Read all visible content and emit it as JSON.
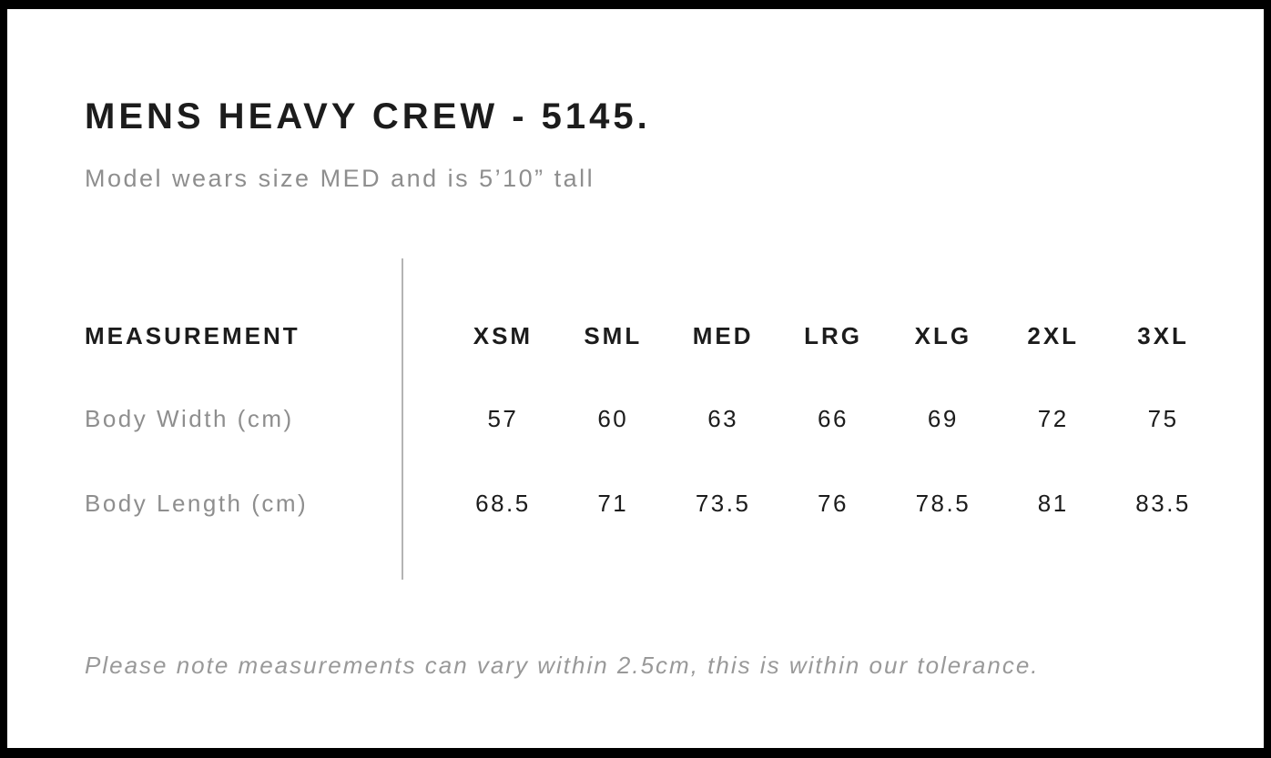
{
  "colors": {
    "frame": "#000000",
    "background": "#ffffff",
    "text_primary": "#1c1c1c",
    "text_secondary": "#8e8e8e",
    "divider": "#b4b4b4"
  },
  "header": {
    "title": "MENS HEAVY CREW - 5145.",
    "subtitle": "Model wears size MED and is 5’10” tall"
  },
  "table": {
    "measurement_header": "MEASUREMENT",
    "columns": [
      "XSM",
      "SML",
      "MED",
      "LRG",
      "XLG",
      "2XL",
      "3XL"
    ],
    "rows": [
      {
        "label": "Body Width (cm)",
        "values": [
          "57",
          "60",
          "63",
          "66",
          "69",
          "72",
          "75"
        ]
      },
      {
        "label": "Body Length (cm)",
        "values": [
          "68.5",
          "71",
          "73.5",
          "76",
          "78.5",
          "81",
          "83.5"
        ]
      }
    ]
  },
  "footer": {
    "note": "Please note measurements can vary within 2.5cm, this is within our tolerance."
  },
  "chart_data": {
    "type": "table",
    "title": "MENS HEAVY CREW - 5145.",
    "subtitle": "Model wears size MED and is 5’10” tall",
    "columns": [
      "MEASUREMENT",
      "XSM",
      "SML",
      "MED",
      "LRG",
      "XLG",
      "2XL",
      "3XL"
    ],
    "rows": [
      [
        "Body Width (cm)",
        57,
        60,
        63,
        66,
        69,
        72,
        75
      ],
      [
        "Body Length (cm)",
        68.5,
        71,
        73.5,
        76,
        78.5,
        81,
        83.5
      ]
    ],
    "note": "Please note measurements can vary within 2.5cm, this is within our tolerance."
  }
}
